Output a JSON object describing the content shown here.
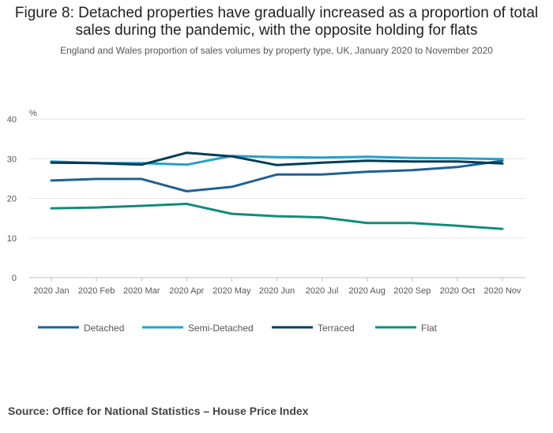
{
  "title": "Figure 8: Detached properties have gradually increased as a proportion of total sales during the pandemic, with the opposite holding for flats",
  "subtitle": "England and Wales proportion of sales volumes by property type, UK, January 2020 to November 2020",
  "source": "Source: Office for National Statistics – House Price Index",
  "chart_data": {
    "type": "line",
    "title": "Figure 8: Detached properties have gradually increased as a proportion of total sales during the pandemic, with the opposite holding for flats",
    "subtitle": "England and Wales proportion of sales volumes by property type, UK, January 2020 to November 2020",
    "ylabel": "%",
    "xlabel": "",
    "ylim": [
      0,
      40
    ],
    "yticks": [
      0,
      10,
      20,
      30,
      40
    ],
    "grid": true,
    "legend_position": "bottom-left",
    "categories": [
      "2020 Jan",
      "2020 Feb",
      "2020 Mar",
      "2020 Apr",
      "2020 May",
      "2020 Jun",
      "2020 Jul",
      "2020 Aug",
      "2020 Sep",
      "2020 Oct",
      "2020 Nov"
    ],
    "series": [
      {
        "name": "Detached",
        "color": "#206095",
        "values": [
          24.5,
          24.9,
          24.9,
          21.8,
          22.9,
          26.0,
          26.0,
          26.7,
          27.1,
          27.9,
          29.5
        ]
      },
      {
        "name": "Semi-Detached",
        "color": "#27a0cc",
        "values": [
          29.3,
          28.9,
          28.9,
          28.5,
          30.7,
          30.4,
          30.3,
          30.5,
          30.2,
          30.1,
          29.9
        ]
      },
      {
        "name": "Terraced",
        "color": "#003c57",
        "values": [
          29.0,
          28.9,
          28.5,
          31.5,
          30.6,
          28.4,
          29.0,
          29.5,
          29.3,
          29.3,
          28.8
        ]
      },
      {
        "name": "Flat",
        "color": "#118c7b",
        "values": [
          17.5,
          17.7,
          18.1,
          18.6,
          16.1,
          15.5,
          15.2,
          13.8,
          13.8,
          13.1,
          12.3
        ]
      }
    ]
  }
}
